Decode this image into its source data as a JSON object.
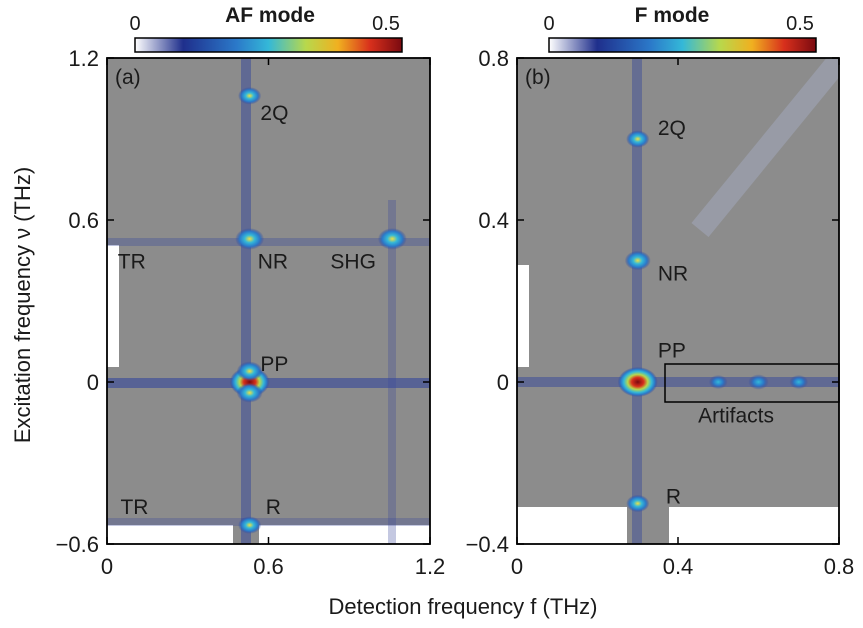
{
  "xlabel": "Detection frequency f (THz)",
  "ylabel": "Excitation frequency ν (THz)",
  "colorbar_min": "0",
  "colorbar_max": "0.5",
  "chart_data": [
    {
      "type": "heatmap",
      "panel_label": "(a)",
      "title": "AF mode",
      "colorbar_range": [
        0,
        0.5
      ],
      "xlim": [
        0,
        1.2
      ],
      "ylim": [
        -0.6,
        1.2
      ],
      "x_ticks": [
        0,
        0.6,
        1.2
      ],
      "x_tick_labels": [
        "0",
        "0.6",
        "1.2"
      ],
      "y_ticks": [
        -0.6,
        0,
        0.6,
        1.2
      ],
      "y_tick_labels": [
        "−0.6",
        "0",
        "0.6",
        "1.2"
      ],
      "annotations": [
        {
          "text": "2Q",
          "x": 0.57,
          "y": 1.0
        },
        {
          "text": "TR",
          "x": 0.04,
          "y": 0.45
        },
        {
          "text": "NR",
          "x": 0.56,
          "y": 0.45
        },
        {
          "text": "SHG",
          "x": 0.83,
          "y": 0.45
        },
        {
          "text": "PP",
          "x": 0.57,
          "y": 0.07
        },
        {
          "text": "TR",
          "x": 0.05,
          "y": -0.46
        },
        {
          "text": "R",
          "x": 0.59,
          "y": -0.46
        }
      ],
      "peaks": [
        {
          "x": 0.53,
          "y": 0.0,
          "intensity": 0.5
        },
        {
          "x": 0.53,
          "y": 0.53,
          "intensity": 0.3
        },
        {
          "x": 1.06,
          "y": 0.53,
          "intensity": 0.3
        },
        {
          "x": 0.53,
          "y": 1.06,
          "intensity": 0.2
        },
        {
          "x": 0.53,
          "y": -0.53,
          "intensity": 0.2
        },
        {
          "x": 0.53,
          "y": 0.04,
          "intensity": 0.25
        },
        {
          "x": 0.53,
          "y": -0.04,
          "intensity": 0.25
        }
      ]
    },
    {
      "type": "heatmap",
      "panel_label": "(b)",
      "title": "F mode",
      "colorbar_range": [
        0,
        0.5
      ],
      "xlim": [
        0,
        0.8
      ],
      "ylim": [
        -0.4,
        0.8
      ],
      "x_ticks": [
        0,
        0.4,
        0.8
      ],
      "x_tick_labels": [
        "0",
        "0.4",
        "0.8"
      ],
      "y_ticks": [
        -0.4,
        0,
        0.4,
        0.8
      ],
      "y_tick_labels": [
        "−0.4",
        "0",
        "0.4",
        "0.8"
      ],
      "annotations": [
        {
          "text": "2Q",
          "x": 0.35,
          "y": 0.63
        },
        {
          "text": "NR",
          "x": 0.35,
          "y": 0.27
        },
        {
          "text": "PP",
          "x": 0.35,
          "y": 0.08
        },
        {
          "text": "Artifacts",
          "x": 0.45,
          "y": -0.08
        },
        {
          "text": "R",
          "x": 0.37,
          "y": -0.28
        }
      ],
      "peaks": [
        {
          "x": 0.3,
          "y": 0.0,
          "intensity": 0.5
        },
        {
          "x": 0.3,
          "y": 0.3,
          "intensity": 0.25
        },
        {
          "x": 0.3,
          "y": 0.6,
          "intensity": 0.2
        },
        {
          "x": 0.3,
          "y": -0.3,
          "intensity": 0.2
        },
        {
          "x": 0.6,
          "y": 0.0,
          "intensity": 0.15
        },
        {
          "x": 0.5,
          "y": 0.0,
          "intensity": 0.12
        },
        {
          "x": 0.7,
          "y": 0.0,
          "intensity": 0.12
        }
      ]
    }
  ],
  "colors": {
    "background": "#8c8c8c",
    "colorbar": [
      "#ffffff",
      "#1f2f8c",
      "#2b79c9",
      "#34b8d8",
      "#b8d84c",
      "#f0b020",
      "#d8301c",
      "#7a0a10"
    ]
  }
}
